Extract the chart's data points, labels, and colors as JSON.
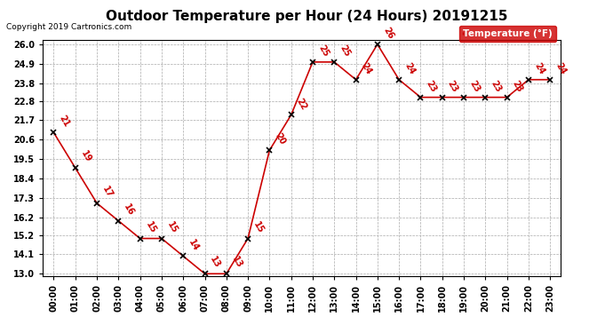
{
  "title": "Outdoor Temperature per Hour (24 Hours) 20191215",
  "copyright": "Copyright 2019 Cartronics.com",
  "legend_label": "Temperature (°F)",
  "hours": [
    "00:00",
    "01:00",
    "02:00",
    "03:00",
    "04:00",
    "05:00",
    "06:00",
    "07:00",
    "08:00",
    "09:00",
    "10:00",
    "11:00",
    "12:00",
    "13:00",
    "14:00",
    "15:00",
    "16:00",
    "17:00",
    "18:00",
    "19:00",
    "20:00",
    "21:00",
    "22:00",
    "23:00"
  ],
  "temps": [
    21,
    19,
    17,
    16,
    15,
    15,
    14,
    13,
    13,
    15,
    20,
    22,
    25,
    25,
    24,
    26,
    24,
    23,
    23,
    23,
    23,
    23,
    24,
    24
  ],
  "ylim_min": 13.0,
  "ylim_max": 26.0,
  "line_color": "#cc0000",
  "marker_color": "#000000",
  "label_color": "#cc0000",
  "bg_color": "#ffffff",
  "grid_color": "#aaaaaa",
  "title_fontsize": 11,
  "copyright_fontsize": 6.5,
  "tick_fontsize": 7,
  "label_fontsize": 7,
  "legend_bg": "#cc0000",
  "legend_text_color": "#ffffff",
  "yticks": [
    13.0,
    14.1,
    15.2,
    16.2,
    17.3,
    18.4,
    19.5,
    20.6,
    21.7,
    22.8,
    23.8,
    24.9,
    26.0
  ]
}
